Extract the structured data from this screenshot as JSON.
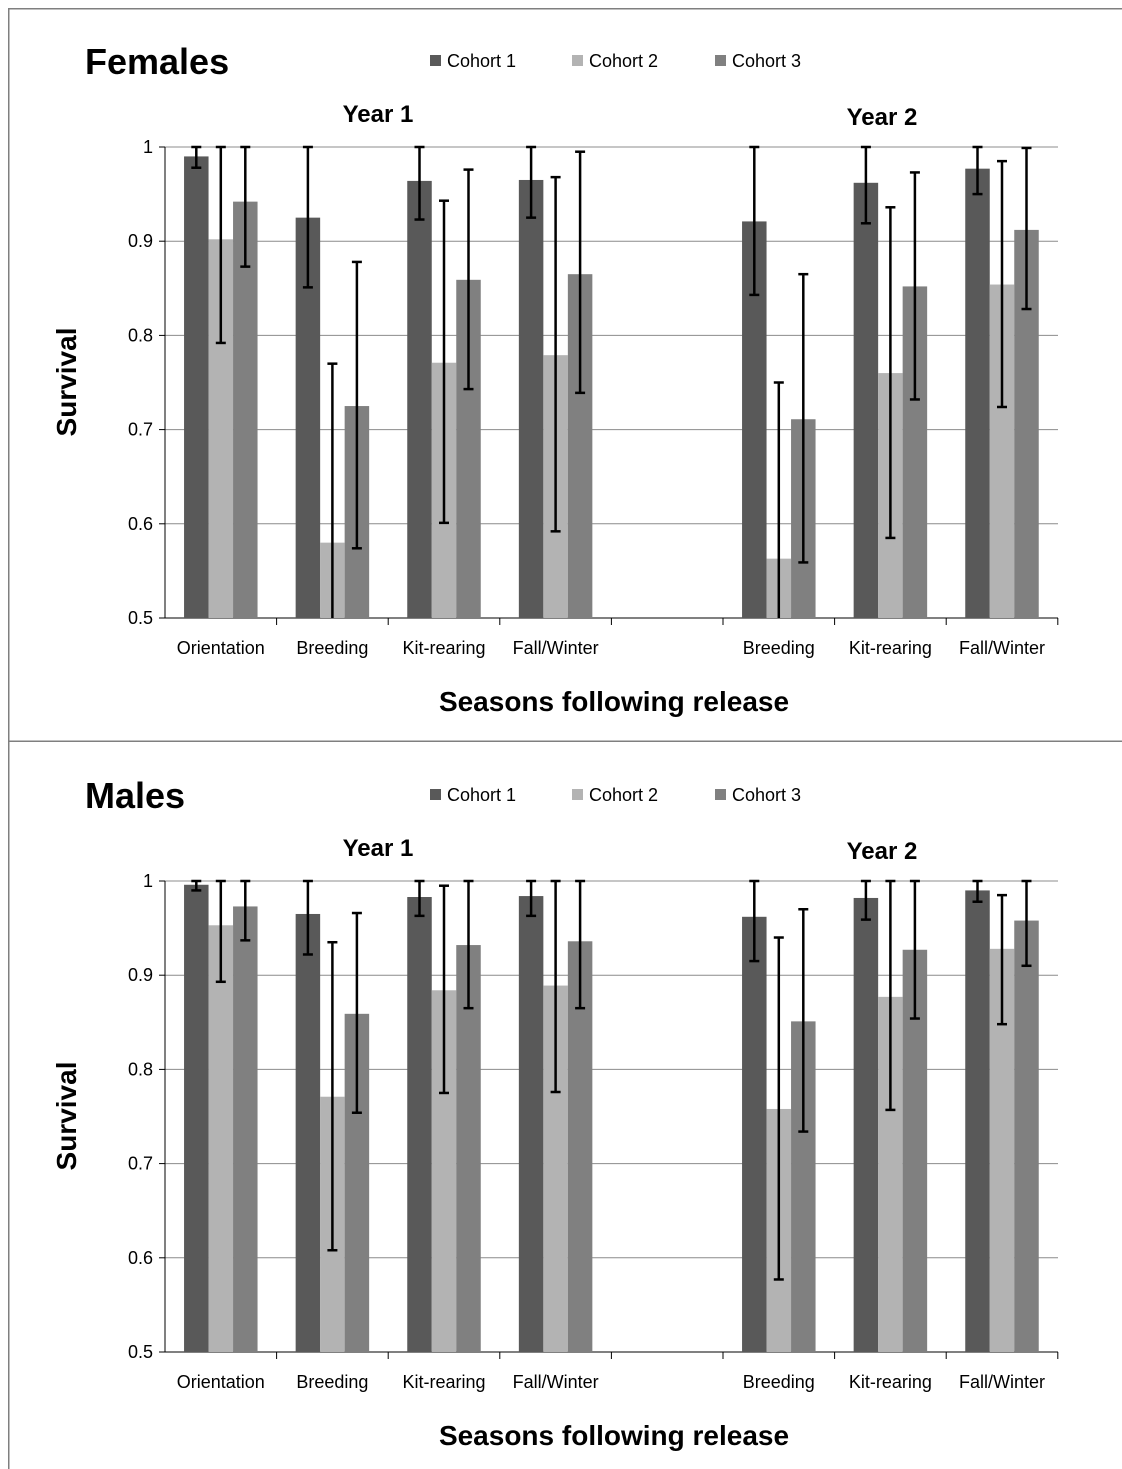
{
  "colors": {
    "cohort1": "#595959",
    "cohort2": "#b3b3b3",
    "cohort3": "#808080",
    "grid": "#8c8c8c",
    "border": "#7f7f7f",
    "error": "#000000"
  },
  "legend": [
    "Cohort 1",
    "Cohort 2",
    "Cohort 3"
  ],
  "chart_data": [
    {
      "type": "bar",
      "title": "Females",
      "xlabel": "Seasons following release",
      "ylabel": "Survival",
      "ylim": [
        0.5,
        1
      ],
      "yticks": [
        "0.5",
        "0.6",
        "0.7",
        "0.8",
        "0.9",
        "1"
      ],
      "year_labels": [
        "Year 1",
        "Year 2"
      ],
      "categories": [
        "Orientation",
        "Breeding",
        "Kit-rearing",
        "Fall/Winter",
        "",
        "Breeding",
        "Kit-rearing",
        "Fall/Winter"
      ],
      "legend_position": "top",
      "grid": true,
      "series": [
        {
          "name": "Cohort 1",
          "values": [
            0.99,
            0.925,
            0.964,
            0.965,
            null,
            0.921,
            0.962,
            0.977
          ],
          "err_low": [
            0.978,
            0.851,
            0.923,
            0.925,
            null,
            0.843,
            0.919,
            0.95
          ],
          "err_high": [
            1.0,
            1.0,
            1.0,
            1.0,
            null,
            1.0,
            1.0,
            1.0
          ]
        },
        {
          "name": "Cohort 2",
          "values": [
            0.902,
            0.58,
            0.771,
            0.779,
            null,
            0.563,
            0.76,
            0.854
          ],
          "err_low": [
            0.792,
            0.5,
            0.601,
            0.592,
            null,
            0.5,
            0.585,
            0.724
          ],
          "err_high": [
            1.0,
            0.77,
            0.943,
            0.968,
            null,
            0.75,
            0.936,
            0.985
          ]
        },
        {
          "name": "Cohort 3",
          "values": [
            0.942,
            0.725,
            0.859,
            0.865,
            null,
            0.711,
            0.852,
            0.912
          ],
          "err_low": [
            0.873,
            0.574,
            0.743,
            0.739,
            null,
            0.559,
            0.732,
            0.828
          ],
          "err_high": [
            1.0,
            0.878,
            0.976,
            0.995,
            null,
            0.865,
            0.973,
            0.999
          ]
        }
      ]
    },
    {
      "type": "bar",
      "title": "Males",
      "xlabel": "Seasons following release",
      "ylabel": "Survival",
      "ylim": [
        0.5,
        1
      ],
      "yticks": [
        "0.5",
        "0.6",
        "0.7",
        "0.8",
        "0.9",
        "1"
      ],
      "year_labels": [
        "Year 1",
        "Year 2"
      ],
      "categories": [
        "Orientation",
        "Breeding",
        "Kit-rearing",
        "Fall/Winter",
        "",
        "Breeding",
        "Kit-rearing",
        "Fall/Winter"
      ],
      "legend_position": "top",
      "grid": true,
      "series": [
        {
          "name": "Cohort 1",
          "values": [
            0.996,
            0.965,
            0.983,
            0.984,
            null,
            0.962,
            0.982,
            0.99
          ],
          "err_low": [
            0.99,
            0.922,
            0.963,
            0.963,
            null,
            0.915,
            0.959,
            0.978
          ],
          "err_high": [
            1.0,
            1.0,
            1.0,
            1.0,
            null,
            1.0,
            1.0,
            1.0
          ]
        },
        {
          "name": "Cohort 2",
          "values": [
            0.953,
            0.771,
            0.884,
            0.889,
            null,
            0.758,
            0.877,
            0.928
          ],
          "err_low": [
            0.893,
            0.608,
            0.775,
            0.776,
            null,
            0.577,
            0.757,
            0.848
          ],
          "err_high": [
            1.0,
            0.935,
            0.995,
            1.0,
            null,
            0.94,
            1.0,
            0.985
          ]
        },
        {
          "name": "Cohort 3",
          "values": [
            0.973,
            0.859,
            0.932,
            0.936,
            null,
            0.851,
            0.927,
            0.958
          ],
          "err_low": [
            0.937,
            0.754,
            0.865,
            0.865,
            null,
            0.734,
            0.854,
            0.91
          ],
          "err_high": [
            1.0,
            0.966,
            1.0,
            1.0,
            null,
            0.97,
            1.0,
            1.0
          ]
        }
      ]
    }
  ]
}
